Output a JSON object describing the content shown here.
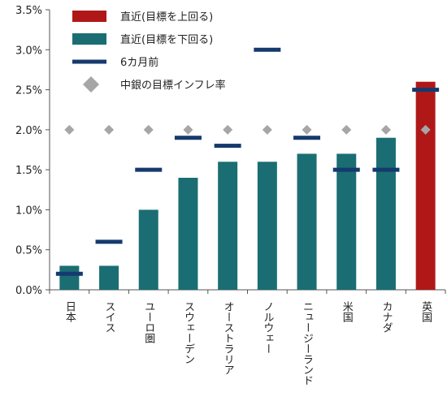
{
  "chart_data": {
    "type": "bar",
    "categories": [
      "日本",
      "スイス",
      "ユーロ圏",
      "スウェーデン",
      "オーストラリア",
      "ノルウェー",
      "ニュージーランド",
      "米国",
      "カナダ",
      "英国"
    ],
    "series": [
      {
        "name": "直近(目標を上回る)",
        "kind": "bar",
        "color": "#b01818",
        "values": [
          null,
          null,
          null,
          null,
          null,
          null,
          null,
          null,
          null,
          2.6
        ]
      },
      {
        "name": "直近(目標を下回る)",
        "kind": "bar",
        "color": "#1a6e73",
        "values": [
          0.3,
          0.3,
          1.0,
          1.4,
          1.6,
          1.6,
          1.7,
          1.7,
          1.9,
          null
        ]
      },
      {
        "name": "6カ月前",
        "kind": "dash",
        "color": "#153a6e",
        "values": [
          0.2,
          0.6,
          1.5,
          1.9,
          1.8,
          3.0,
          1.9,
          1.5,
          1.5,
          2.5
        ]
      },
      {
        "name": "中銀の目標インフレ率",
        "kind": "diamond",
        "color": "#a6a6a6",
        "values": [
          2.0,
          2.0,
          2.0,
          2.0,
          2.0,
          2.0,
          2.0,
          2.0,
          2.0,
          2.0
        ]
      }
    ],
    "ylim": [
      0,
      3.5
    ],
    "yticks": [
      {
        "value": 0.0,
        "label": "0.0%"
      },
      {
        "value": 0.5,
        "label": "0.5%"
      },
      {
        "value": 1.0,
        "label": "1.0%"
      },
      {
        "value": 1.5,
        "label": "1.5%"
      },
      {
        "value": 2.0,
        "label": "2.0%"
      },
      {
        "value": 2.5,
        "label": "2.5%"
      },
      {
        "value": 3.0,
        "label": "3.0%"
      },
      {
        "value": 3.5,
        "label": "3.5%"
      }
    ],
    "title": "",
    "xlabel": "",
    "ylabel": "",
    "grid": false,
    "legend_position": "top-left",
    "colors": {
      "axis": "#555555",
      "text": "#222222"
    }
  }
}
